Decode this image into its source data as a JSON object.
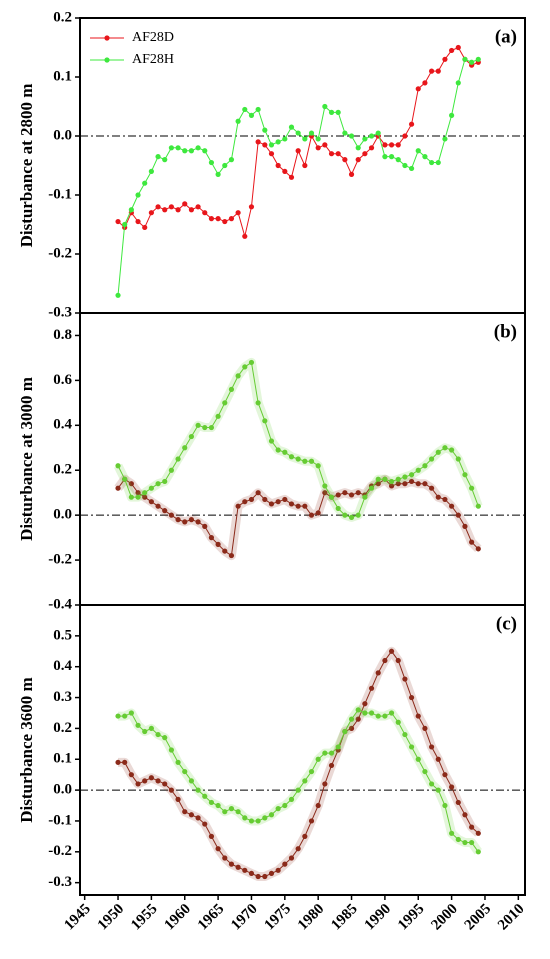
{
  "chart_data": [
    {
      "type": "line",
      "annotation": "(a)",
      "ylabel": "Disturbance at 2800 m",
      "legend": "upper left",
      "hline": 0,
      "x": [
        1950,
        1951,
        1952,
        1953,
        1954,
        1955,
        1956,
        1957,
        1958,
        1959,
        1960,
        1961,
        1962,
        1963,
        1964,
        1965,
        1966,
        1967,
        1968,
        1969,
        1970,
        1971,
        1972,
        1973,
        1974,
        1975,
        1976,
        1977,
        1978,
        1979,
        1980,
        1981,
        1982,
        1983,
        1984,
        1985,
        1986,
        1987,
        1988,
        1989,
        1990,
        1991,
        1992,
        1993,
        1994,
        1995,
        1996,
        1997,
        1998,
        1999,
        2000,
        2001,
        2002,
        2003,
        2004
      ],
      "xlim": [
        1944.3,
        2011
      ],
      "ylim": [
        -0.3,
        0.2
      ],
      "yticks": [
        -0.3,
        -0.2,
        -0.1,
        {
          "value": 0,
          "label": "0.0"
        },
        0.1,
        0.2
      ],
      "series": [
        {
          "name": "AF28D",
          "color": "#e8161b",
          "values": [
            -0.145,
            -0.155,
            -0.13,
            -0.145,
            -0.155,
            -0.13,
            -0.12,
            -0.125,
            -0.12,
            -0.125,
            -0.115,
            -0.125,
            -0.12,
            -0.13,
            -0.14,
            -0.14,
            -0.145,
            -0.14,
            -0.13,
            -0.17,
            -0.12,
            -0.01,
            -0.015,
            -0.03,
            -0.05,
            -0.06,
            -0.07,
            -0.025,
            -0.05,
            0.0,
            -0.02,
            -0.015,
            -0.03,
            -0.03,
            -0.04,
            -0.065,
            -0.04,
            -0.03,
            -0.02,
            0.0,
            -0.015,
            -0.015,
            -0.015,
            0.0,
            0.02,
            0.08,
            0.09,
            0.11,
            0.11,
            0.13,
            0.145,
            0.15,
            0.13,
            0.12,
            0.125
          ]
        },
        {
          "name": "AF28H",
          "color": "#3ee83e",
          "values": [
            -0.27,
            -0.15,
            -0.125,
            -0.1,
            -0.08,
            -0.06,
            -0.035,
            -0.04,
            -0.02,
            -0.02,
            -0.025,
            -0.025,
            -0.02,
            -0.025,
            -0.045,
            -0.065,
            -0.05,
            -0.04,
            0.025,
            0.045,
            0.035,
            0.045,
            0.01,
            -0.015,
            -0.01,
            -0.005,
            0.015,
            0.005,
            -0.005,
            0.005,
            -0.005,
            0.05,
            0.04,
            0.04,
            0.005,
            0.0,
            -0.02,
            -0.005,
            0.0,
            0.005,
            -0.035,
            -0.035,
            -0.04,
            -0.05,
            -0.055,
            -0.025,
            -0.035,
            -0.045,
            -0.045,
            -0.005,
            0.035,
            0.09,
            0.13,
            0.125,
            0.13
          ]
        }
      ]
    },
    {
      "type": "line",
      "annotation": "(b)",
      "ylabel": "Disturbance at 3000 m",
      "hline": 0,
      "x": [
        1950,
        1951,
        1952,
        1953,
        1954,
        1955,
        1956,
        1957,
        1958,
        1959,
        1960,
        1961,
        1962,
        1963,
        1964,
        1965,
        1966,
        1967,
        1968,
        1969,
        1970,
        1971,
        1972,
        1973,
        1974,
        1975,
        1976,
        1977,
        1978,
        1979,
        1980,
        1981,
        1982,
        1983,
        1984,
        1985,
        1986,
        1987,
        1988,
        1989,
        1990,
        1991,
        1992,
        1993,
        1994,
        1995,
        1996,
        1997,
        1998,
        1999,
        2000,
        2001,
        2002,
        2003,
        2004
      ],
      "xlim": [
        1944.3,
        2011
      ],
      "ylim": [
        -0.4,
        0.9
      ],
      "yticks": [
        -0.4,
        -0.2,
        {
          "value": 0,
          "label": "0.0"
        },
        0.2,
        0.4,
        0.6,
        0.8
      ],
      "series": [
        {
          "color": "#8b2a1a",
          "values": [
            0.12,
            0.16,
            0.14,
            0.1,
            0.08,
            0.06,
            0.04,
            0.02,
            0.0,
            -0.02,
            -0.03,
            -0.02,
            -0.03,
            -0.05,
            -0.1,
            -0.13,
            -0.16,
            -0.18,
            0.04,
            0.06,
            0.07,
            0.1,
            0.07,
            0.05,
            0.06,
            0.07,
            0.05,
            0.04,
            0.04,
            0.0,
            0.01,
            0.1,
            0.08,
            0.09,
            0.1,
            0.09,
            0.1,
            0.09,
            0.13,
            0.14,
            0.16,
            0.13,
            0.14,
            0.14,
            0.15,
            0.14,
            0.14,
            0.12,
            0.08,
            0.07,
            0.04,
            0.0,
            -0.05,
            -0.12,
            -0.15
          ]
        },
        {
          "color": "#66cc33",
          "values": [
            0.22,
            0.16,
            0.08,
            0.08,
            0.1,
            0.12,
            0.14,
            0.15,
            0.2,
            0.25,
            0.3,
            0.35,
            0.4,
            0.39,
            0.39,
            0.44,
            0.5,
            0.56,
            0.62,
            0.66,
            0.68,
            0.5,
            0.42,
            0.33,
            0.29,
            0.28,
            0.26,
            0.25,
            0.24,
            0.24,
            0.22,
            0.13,
            0.08,
            0.03,
            0.0,
            -0.01,
            0.0,
            0.08,
            0.12,
            0.16,
            0.16,
            0.15,
            0.16,
            0.17,
            0.18,
            0.2,
            0.22,
            0.25,
            0.28,
            0.3,
            0.29,
            0.25,
            0.18,
            0.12,
            0.04
          ]
        }
      ]
    },
    {
      "type": "line",
      "annotation": "(c)",
      "ylabel": "Disturbance 3600 m",
      "hline": 0,
      "x": [
        1950,
        1951,
        1952,
        1953,
        1954,
        1955,
        1956,
        1957,
        1958,
        1959,
        1960,
        1961,
        1962,
        1963,
        1964,
        1965,
        1966,
        1967,
        1968,
        1969,
        1970,
        1971,
        1972,
        1973,
        1974,
        1975,
        1976,
        1977,
        1978,
        1979,
        1980,
        1981,
        1982,
        1983,
        1984,
        1985,
        1986,
        1987,
        1988,
        1989,
        1990,
        1991,
        1992,
        1993,
        1994,
        1995,
        1996,
        1997,
        1998,
        1999,
        2000,
        2001,
        2002,
        2003,
        2004
      ],
      "xlim": [
        1944.3,
        2011
      ],
      "ylim": [
        -0.34,
        0.6
      ],
      "xticks": [
        1945,
        1950,
        1955,
        1960,
        1965,
        1970,
        1975,
        1980,
        1985,
        1990,
        1995,
        2000,
        2005,
        2010
      ],
      "yticks": [
        -0.3,
        -0.2,
        -0.1,
        {
          "value": 0,
          "label": "0.0"
        },
        0.1,
        0.2,
        0.3,
        0.4,
        0.5
      ],
      "series": [
        {
          "color": "#8b2a1a",
          "values": [
            0.09,
            0.09,
            0.05,
            0.02,
            0.03,
            0.04,
            0.03,
            0.02,
            0.0,
            -0.03,
            -0.07,
            -0.08,
            -0.09,
            -0.11,
            -0.15,
            -0.19,
            -0.22,
            -0.24,
            -0.25,
            -0.26,
            -0.27,
            -0.28,
            -0.28,
            -0.27,
            -0.26,
            -0.24,
            -0.22,
            -0.19,
            -0.15,
            -0.1,
            -0.05,
            0.02,
            0.08,
            0.13,
            0.19,
            0.2,
            0.23,
            0.28,
            0.33,
            0.38,
            0.42,
            0.45,
            0.42,
            0.36,
            0.3,
            0.24,
            0.2,
            0.14,
            0.1,
            0.05,
            0.01,
            -0.04,
            -0.08,
            -0.12,
            -0.14
          ]
        },
        {
          "color": "#66cc33",
          "values": [
            0.24,
            0.24,
            0.25,
            0.21,
            0.19,
            0.2,
            0.18,
            0.17,
            0.13,
            0.09,
            0.06,
            0.03,
            0.0,
            -0.02,
            -0.04,
            -0.05,
            -0.07,
            -0.06,
            -0.07,
            -0.09,
            -0.1,
            -0.1,
            -0.09,
            -0.08,
            -0.06,
            -0.05,
            -0.03,
            0.0,
            0.03,
            0.06,
            0.1,
            0.12,
            0.12,
            0.14,
            0.19,
            0.23,
            0.26,
            0.25,
            0.25,
            0.24,
            0.24,
            0.25,
            0.22,
            0.18,
            0.14,
            0.1,
            0.06,
            0.02,
            0.0,
            -0.05,
            -0.14,
            -0.16,
            -0.17,
            -0.17,
            -0.2
          ]
        }
      ]
    }
  ]
}
